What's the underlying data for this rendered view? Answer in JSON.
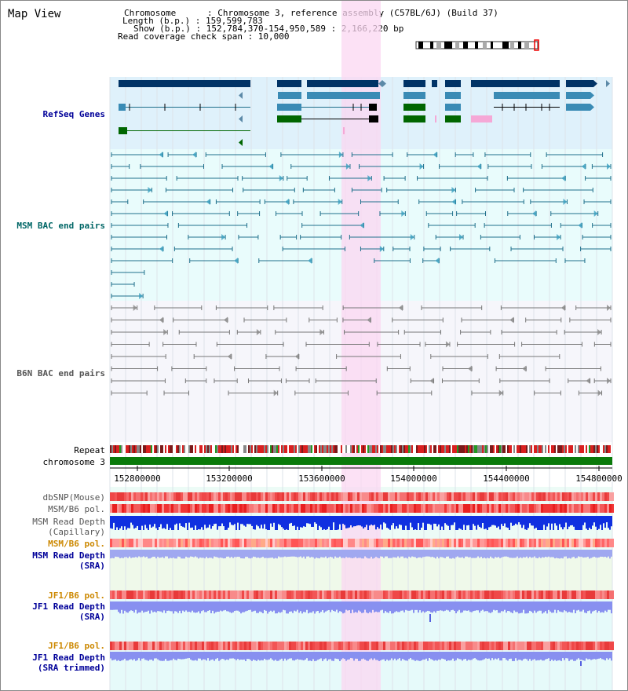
{
  "page_title": "Map View",
  "info": {
    "line1": "Chromosome      : Chromosome 3, reference assembly (C57BL/6J) (Build 37)",
    "line2": "Length (b.p.) : 159,599,783",
    "line3": "Show (b.p.) : 152,784,370-154,950,589 : 2,166,220 bp",
    "line4": "Read coverage check span : 10,000"
  },
  "tracks": {
    "refseq": "RefSeq Genes",
    "msm_bac": "MSM BAC end pairs",
    "b6n_bac": "B6N BAC end pairs",
    "repeat": "Repeat",
    "chromosome": "chromosome 3",
    "dbsnp": "dbSNP(Mouse)",
    "msm_pol1": "MSM/B6 pol.",
    "msm_depth_cap_1": "MSM Read Depth",
    "msm_depth_cap_2": "(Capillary)",
    "msm_pol2": "MSM/B6 pol.",
    "msm_depth_sra_1": "MSM Read Depth",
    "msm_depth_sra_2": "(SRA)",
    "jf1_pol1": "JF1/B6 pol.",
    "jf1_depth_sra_1": "JF1 Read Depth",
    "jf1_depth_sra_2": "(SRA)",
    "jf1_pol2": "JF1/B6 pol.",
    "jf1_depth_trim_1": "JF1 Read Depth",
    "jf1_depth_trim_2": "(SRA trimmed)"
  },
  "axis": {
    "ticks": [
      "152800000",
      "153200000",
      "153600000",
      "154000000",
      "154400000",
      "154800000"
    ]
  },
  "colors": {
    "refseq_bg": "#dff1fb",
    "msm_bg": "#e9fcfc",
    "b6n_bg": "#f6f6fb",
    "highlight": "#fbd7f1",
    "gene_dark": "#003366",
    "gene_mid": "#3a8bb5",
    "gene_green": "#006600",
    "msm_line": "#1f6f8b",
    "b6n_line": "#777777",
    "track_label_blue": "#000099",
    "track_label_orange": "#cc8800",
    "track_label_teal": "#006666"
  }
}
